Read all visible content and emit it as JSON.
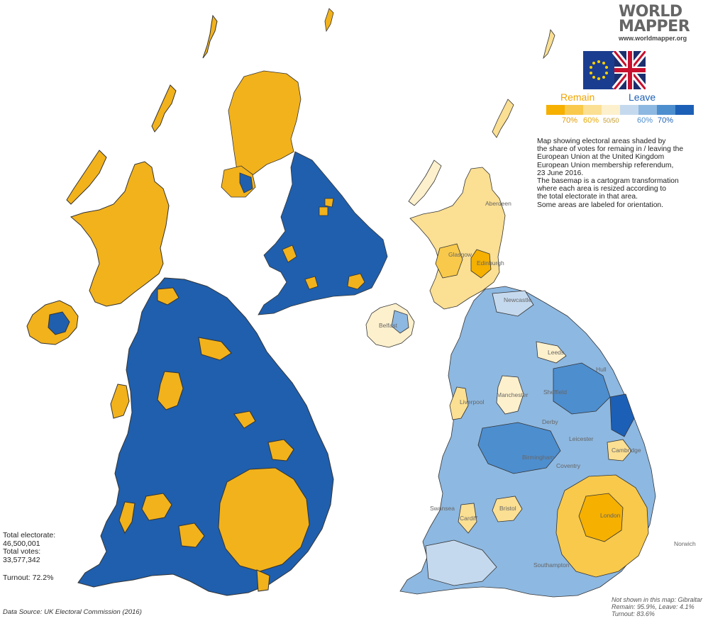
{
  "brand": {
    "line1": "WORLD",
    "line2": "MAPPER",
    "url": "www.worldmapper.org"
  },
  "legend": {
    "remain_label": "Remain",
    "leave_label": "Leave",
    "ticks": [
      "70%",
      "60%",
      "50/50",
      "60%",
      "70%"
    ],
    "colors": [
      "#f5b000",
      "#f8c94a",
      "#fbdf92",
      "#fdf0cc",
      "#c5d9ee",
      "#8db8e1",
      "#4d8ecf",
      "#1c5fb6"
    ]
  },
  "colors": {
    "remain": "#f2b21c",
    "leave": "#1f5fad",
    "map_outline": "#333333"
  },
  "description": {
    "line1": "Map showing electoral areas shaded by",
    "line2": "the share of votes for remaing in / leaving the",
    "line3": "European Union at the United Kingdom",
    "line4": "European Union membership referendum,",
    "line5": "23 June 2016.",
    "line6": "The basemap is a cartogram transformation",
    "line7": "where each area is resized according to",
    "line8": "the total electorate in that area.",
    "line9": "Some areas are labeled for orientation."
  },
  "stats": {
    "electorate_label": "Total electorate:",
    "electorate_value": "46,500,001",
    "votes_label": "Total votes:",
    "votes_value": "33,577,342",
    "turnout": "Turnout: 72.2%"
  },
  "source": "Data Source: UK Electoral Commission (2016)",
  "note": {
    "line1": "Not shown in this map: Gibraltar",
    "line2": "Remain: 95.9%, Leave: 4.1%",
    "line3": "Turnout: 83.6%"
  },
  "place_labels": {
    "aberdeen": "Aberdeen",
    "glasgow": "Glasgow",
    "edinburgh": "Edinburgh",
    "belfast": "Belfast",
    "newcastle": "Newcastle",
    "leeds": "Leeds",
    "hull": "Hull",
    "manchester": "Manchester",
    "liverpool": "Liverpool",
    "sheffield": "Sheffield",
    "derby": "Derby",
    "leicester": "Leicester",
    "birmingham": "Birmingham",
    "coventry": "Coventry",
    "cambridge": "Cambridge",
    "swansea": "Swansea",
    "cardiff": "Cardiff",
    "bristol": "Bristol",
    "london": "London",
    "southampton": "Southampton",
    "norwich": "Norwich"
  }
}
